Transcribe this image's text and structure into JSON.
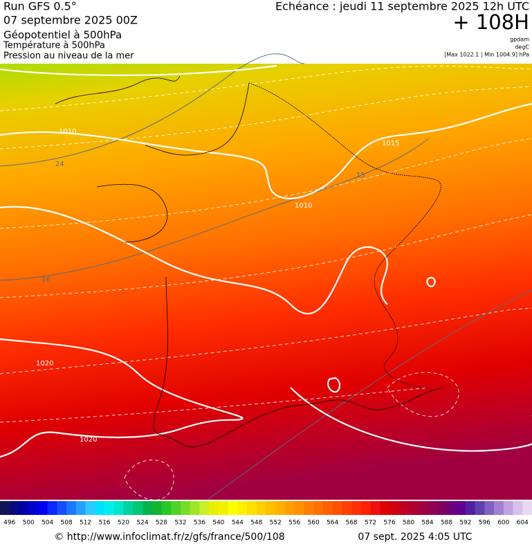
{
  "header": {
    "run": "Run GFS 0.5°",
    "run_date": "07 septembre 2025 00Z",
    "field_1": "Géopotentiel à 500hPa",
    "field_2": "Température à 500hPa",
    "field_3": "Pression au niveau de la mer",
    "forecast": "Echéance : jeudi 11 septembre 2025 12h UTC",
    "lead": "+ 108H",
    "unit_1": "gpdam",
    "unit_2": "degC",
    "range": "[Max 1022.1 | Min 1004.9] hPa"
  },
  "map": {
    "contour_labels": [
      "1010",
      "24",
      "1015",
      "15",
      "1010",
      "16",
      "1020",
      "1020"
    ]
  },
  "legend": {
    "labels": [
      496,
      500,
      504,
      508,
      512,
      516,
      520,
      524,
      528,
      532,
      536,
      540,
      544,
      548,
      552,
      556,
      560,
      564,
      568,
      572,
      576,
      580,
      584,
      588,
      592,
      596,
      600,
      604
    ],
    "colors": [
      "#14145a",
      "#0a0a80",
      "#0000a8",
      "#0000d0",
      "#0000f0",
      "#0a28ff",
      "#1450ff",
      "#1e78ff",
      "#28a0ff",
      "#32c8ff",
      "#00e0ff",
      "#00f0f0",
      "#00e6c8",
      "#00d2a0",
      "#00c878",
      "#00b450",
      "#14b432",
      "#28c828",
      "#50d228",
      "#78dc28",
      "#a0e628",
      "#c8f028",
      "#e6f000",
      "#f0f000",
      "#ffff00",
      "#fff000",
      "#ffe000",
      "#ffd000",
      "#ffc000",
      "#ffb000",
      "#ffa000",
      "#ff9000",
      "#ff8000",
      "#ff7000",
      "#ff6000",
      "#ff5000",
      "#ff4000",
      "#ff3000",
      "#ff2000",
      "#f01010",
      "#e00000",
      "#d00010",
      "#c00020",
      "#b00030",
      "#a00040",
      "#900050",
      "#800060",
      "#70007a",
      "#600090",
      "#5020a0",
      "#6040b0",
      "#8060c0",
      "#a080d0",
      "#c0a0e0",
      "#d8c0e8",
      "#e8d8f0"
    ]
  },
  "footer": {
    "url": "© http://www.infoclimat.fr/z/gfs/france/500/108",
    "generated": "07 sept. 2025  4:05 UTC"
  }
}
